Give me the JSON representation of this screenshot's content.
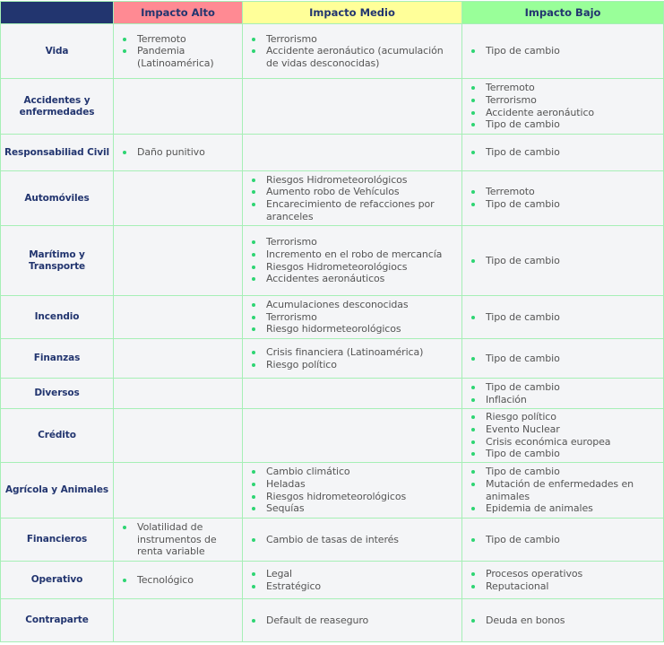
{
  "headers": [
    "",
    "Impacto Alto",
    "Impacto Medio",
    "Impacto Bajo"
  ],
  "colors": {
    "header_navy": "#22356f",
    "alto": "#ff8a93",
    "medio": "#ffff99",
    "bajo": "#99ff99",
    "border": "#a6efb6",
    "bullet": "#2ed573"
  },
  "rows": [
    {
      "label": "Vida",
      "alto": [
        "Terremoto",
        "Pandemia (Latinoamérica)"
      ],
      "medio": [
        "Terrorismo",
        "Accidente aeronáutico (acumulación de vidas desconocidas)"
      ],
      "bajo": [
        "Tipo de cambio"
      ]
    },
    {
      "label": "Accidentes y enfermedades",
      "alto": [],
      "medio": [],
      "bajo": [
        "Terremoto",
        "Terrorismo",
        "Accidente aeronáutico",
        "Tipo de cambio"
      ]
    },
    {
      "label": "Responsabiliad Civil",
      "alto": [
        "Daño punitivo"
      ],
      "medio": [],
      "bajo": [
        "Tipo de cambio"
      ]
    },
    {
      "label": "Automóviles",
      "alto": [],
      "medio": [
        "Riesgos Hidrometeorológicos",
        "Aumento robo de Vehículos",
        "Encarecimiento de refacciones por aranceles"
      ],
      "bajo": [
        "Terremoto",
        "Tipo de cambio"
      ]
    },
    {
      "label": "Marítimo y Transporte",
      "alto": [],
      "medio": [
        "Terrorismo",
        "Incremento en el robo de mercancía",
        "Riesgos Hidrometeorológiocs",
        "Accidentes aeronáuticos"
      ],
      "bajo": [
        "Tipo de cambio"
      ]
    },
    {
      "label": "Incendio",
      "alto": [],
      "medio": [
        "Acumulaciones desconocidas",
        "Terrorismo",
        "Riesgo hidormeteorológicos"
      ],
      "bajo": [
        "Tipo de cambio"
      ]
    },
    {
      "label": "Finanzas",
      "alto": [],
      "medio": [
        "Crisis financiera (Latinoamérica)",
        "Riesgo político"
      ],
      "bajo": [
        "Tipo de cambio"
      ]
    },
    {
      "label": "Diversos",
      "alto": [],
      "medio": [],
      "bajo": [
        "Tipo de cambio",
        "Inflación"
      ]
    },
    {
      "label": "Crédito",
      "alto": [],
      "medio": [],
      "bajo": [
        "Riesgo político",
        "Evento Nuclear",
        "Crisis económica europea",
        "Tipo de cambio"
      ]
    },
    {
      "label": "Agrícola y Animales",
      "alto": [],
      "medio": [
        "Cambio climático",
        "Heladas",
        "Riesgos hidrometeorológicos",
        "Sequías"
      ],
      "bajo": [
        "Tipo de cambio",
        "Mutación de enfermedades en animales",
        "Epidemia de animales"
      ]
    },
    {
      "label": "Financieros",
      "alto": [
        "Volatilidad de instrumentos de renta variable"
      ],
      "medio": [
        "Cambio de tasas de interés"
      ],
      "bajo": [
        "Tipo de cambio"
      ]
    },
    {
      "label": "Operativo",
      "alto": [
        "Tecnológico"
      ],
      "medio": [
        "Legal",
        "Estratégico"
      ],
      "bajo": [
        "Procesos operativos",
        "Reputacional"
      ]
    },
    {
      "label": "Contraparte",
      "alto": [],
      "medio": [
        "Default de reaseguro"
      ],
      "bajo": [
        "Deuda en bonos"
      ]
    }
  ]
}
